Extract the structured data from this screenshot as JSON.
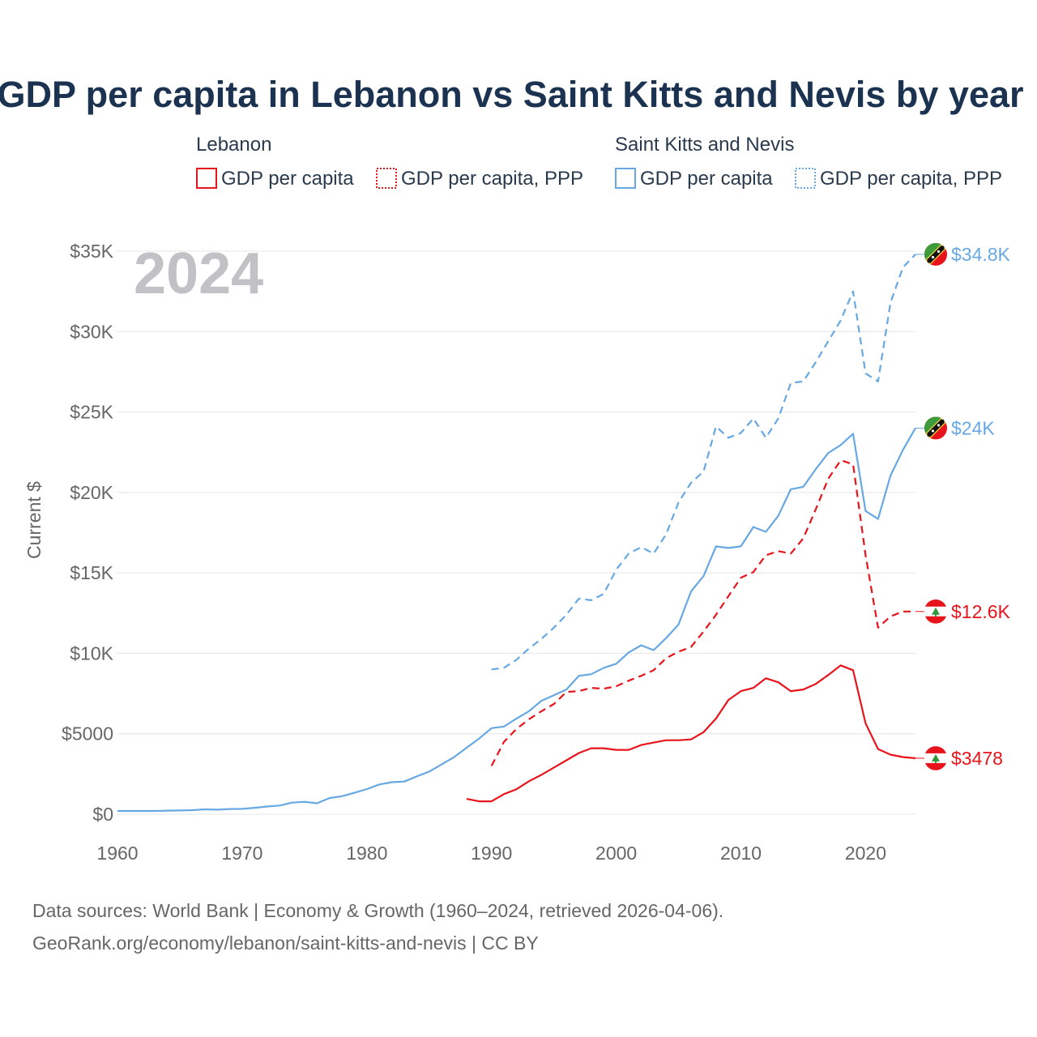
{
  "title": "GDP per capita in Lebanon vs Saint Kitts and Nevis by year",
  "year_label": "2024",
  "legend": {
    "lebanon_label": "Lebanon",
    "skn_label": "Saint Kitts and Nevis",
    "leb_gdp_label": "GDP per capita",
    "leb_ppp_label": "GDP per capita, PPP",
    "skn_gdp_label": "GDP per capita",
    "skn_ppp_label": "GDP per capita, PPP"
  },
  "colors": {
    "lebanon": "#e8141c",
    "skn": "#67a8e3",
    "title": "#1b3350"
  },
  "icons": {
    "skn_flag": "saint-kitts-and-nevis-flag-icon",
    "lebanon_flag": "lebanon-flag-icon"
  },
  "source_line1": "Data sources: World Bank | Economy & Growth (1960–2024, retrieved 2026-04-06).",
  "source_line2": "GeoRank.org/economy/lebanon/saint-kitts-and-nevis | CC BY",
  "chart_data": {
    "type": "line",
    "title": "GDP per capita in Lebanon vs Saint Kitts and Nevis by year",
    "xlabel": "",
    "ylabel": "Current $",
    "xlim": [
      1960,
      2024
    ],
    "ylim": [
      0,
      35000
    ],
    "x_ticks": [
      1960,
      1970,
      1980,
      1990,
      2000,
      2010,
      2020
    ],
    "x_tick_labels": [
      "1960",
      "1970",
      "1980",
      "1990",
      "2000",
      "2010",
      "2020"
    ],
    "y_ticks": [
      0,
      5000,
      10000,
      15000,
      20000,
      25000,
      30000,
      35000
    ],
    "y_tick_labels": [
      "$0",
      "$5000",
      "$10K",
      "$15K",
      "$20K",
      "$25K",
      "$30K",
      "$35K"
    ],
    "grid": true,
    "series": [
      {
        "name": "Saint Kitts and Nevis GDP per capita, PPP",
        "country": "Saint Kitts and Nevis",
        "style": "dashed",
        "end_label": "$34.8K",
        "points": [
          [
            1990,
            9000
          ],
          [
            1991,
            9100
          ],
          [
            1992,
            9600
          ],
          [
            1993,
            10300
          ],
          [
            1994,
            10900
          ],
          [
            1995,
            11600
          ],
          [
            1996,
            12400
          ],
          [
            1997,
            13400
          ],
          [
            1998,
            13300
          ],
          [
            1999,
            13700
          ],
          [
            2000,
            15200
          ],
          [
            2001,
            16200
          ],
          [
            2002,
            16600
          ],
          [
            2003,
            16200
          ],
          [
            2004,
            17400
          ],
          [
            2005,
            19400
          ],
          [
            2006,
            20600
          ],
          [
            2007,
            21300
          ],
          [
            2008,
            24100
          ],
          [
            2009,
            23400
          ],
          [
            2010,
            23700
          ],
          [
            2011,
            24600
          ],
          [
            2012,
            23400
          ],
          [
            2013,
            24600
          ],
          [
            2014,
            26800
          ],
          [
            2015,
            26900
          ],
          [
            2016,
            28100
          ],
          [
            2017,
            29400
          ],
          [
            2018,
            30700
          ],
          [
            2019,
            32500
          ],
          [
            2020,
            27400
          ],
          [
            2021,
            26900
          ],
          [
            2022,
            31800
          ],
          [
            2023,
            34000
          ],
          [
            2024,
            34800
          ]
        ]
      },
      {
        "name": "Saint Kitts and Nevis GDP per capita",
        "country": "Saint Kitts and Nevis",
        "style": "solid",
        "end_label": "$24K",
        "points": [
          [
            1960,
            200
          ],
          [
            1961,
            200
          ],
          [
            1962,
            200
          ],
          [
            1963,
            200
          ],
          [
            1964,
            220
          ],
          [
            1965,
            230
          ],
          [
            1966,
            250
          ],
          [
            1967,
            300
          ],
          [
            1968,
            280
          ],
          [
            1969,
            320
          ],
          [
            1970,
            330
          ],
          [
            1971,
            400
          ],
          [
            1972,
            480
          ],
          [
            1973,
            540
          ],
          [
            1974,
            720
          ],
          [
            1975,
            770
          ],
          [
            1976,
            680
          ],
          [
            1977,
            1000
          ],
          [
            1978,
            1120
          ],
          [
            1979,
            1330
          ],
          [
            1980,
            1560
          ],
          [
            1981,
            1850
          ],
          [
            1982,
            1990
          ],
          [
            1983,
            2030
          ],
          [
            1984,
            2350
          ],
          [
            1985,
            2650
          ],
          [
            1986,
            3100
          ],
          [
            1987,
            3550
          ],
          [
            1988,
            4130
          ],
          [
            1989,
            4700
          ],
          [
            1990,
            5350
          ],
          [
            1991,
            5450
          ],
          [
            1992,
            5950
          ],
          [
            1993,
            6400
          ],
          [
            1994,
            7050
          ],
          [
            1995,
            7400
          ],
          [
            1996,
            7750
          ],
          [
            1997,
            8600
          ],
          [
            1998,
            8700
          ],
          [
            1999,
            9100
          ],
          [
            2000,
            9350
          ],
          [
            2001,
            10050
          ],
          [
            2002,
            10500
          ],
          [
            2003,
            10200
          ],
          [
            2004,
            10950
          ],
          [
            2005,
            11800
          ],
          [
            2006,
            13850
          ],
          [
            2007,
            14800
          ],
          [
            2008,
            16650
          ],
          [
            2009,
            16550
          ],
          [
            2010,
            16650
          ],
          [
            2011,
            17850
          ],
          [
            2012,
            17550
          ],
          [
            2013,
            18550
          ],
          [
            2014,
            20200
          ],
          [
            2015,
            20350
          ],
          [
            2016,
            21450
          ],
          [
            2017,
            22450
          ],
          [
            2018,
            22950
          ],
          [
            2019,
            23650
          ],
          [
            2020,
            18850
          ],
          [
            2021,
            18350
          ],
          [
            2022,
            21050
          ],
          [
            2023,
            22650
          ],
          [
            2024,
            24000
          ]
        ]
      },
      {
        "name": "Lebanon GDP per capita, PPP",
        "country": "Lebanon",
        "style": "dashed",
        "end_label": "$12.6K",
        "points": [
          [
            1990,
            3000
          ],
          [
            1991,
            4500
          ],
          [
            1992,
            5300
          ],
          [
            1993,
            5900
          ],
          [
            1994,
            6400
          ],
          [
            1995,
            6850
          ],
          [
            1996,
            7600
          ],
          [
            1997,
            7650
          ],
          [
            1998,
            7850
          ],
          [
            1999,
            7800
          ],
          [
            2000,
            7950
          ],
          [
            2001,
            8300
          ],
          [
            2002,
            8600
          ],
          [
            2003,
            8950
          ],
          [
            2004,
            9700
          ],
          [
            2005,
            10100
          ],
          [
            2006,
            10400
          ],
          [
            2007,
            11350
          ],
          [
            2008,
            12400
          ],
          [
            2009,
            13550
          ],
          [
            2010,
            14700
          ],
          [
            2011,
            15050
          ],
          [
            2012,
            16100
          ],
          [
            2013,
            16350
          ],
          [
            2014,
            16200
          ],
          [
            2015,
            17150
          ],
          [
            2016,
            18950
          ],
          [
            2017,
            20850
          ],
          [
            2018,
            22000
          ],
          [
            2019,
            21750
          ],
          [
            2020,
            16100
          ],
          [
            2021,
            11600
          ],
          [
            2022,
            12300
          ],
          [
            2023,
            12600
          ],
          [
            2024,
            12600
          ]
        ]
      },
      {
        "name": "Lebanon GDP per capita",
        "country": "Lebanon",
        "style": "solid",
        "end_label": "$3478",
        "points": [
          [
            1988,
            950
          ],
          [
            1989,
            800
          ],
          [
            1990,
            800
          ],
          [
            1991,
            1250
          ],
          [
            1992,
            1550
          ],
          [
            1993,
            2050
          ],
          [
            1994,
            2450
          ],
          [
            1995,
            2900
          ],
          [
            1996,
            3350
          ],
          [
            1997,
            3800
          ],
          [
            1998,
            4100
          ],
          [
            1999,
            4100
          ],
          [
            2000,
            4000
          ],
          [
            2001,
            4000
          ],
          [
            2002,
            4300
          ],
          [
            2003,
            4450
          ],
          [
            2004,
            4600
          ],
          [
            2005,
            4600
          ],
          [
            2006,
            4650
          ],
          [
            2007,
            5100
          ],
          [
            2008,
            5950
          ],
          [
            2009,
            7100
          ],
          [
            2010,
            7650
          ],
          [
            2011,
            7850
          ],
          [
            2012,
            8450
          ],
          [
            2013,
            8200
          ],
          [
            2014,
            7650
          ],
          [
            2015,
            7750
          ],
          [
            2016,
            8100
          ],
          [
            2017,
            8650
          ],
          [
            2018,
            9250
          ],
          [
            2019,
            8950
          ],
          [
            2020,
            5650
          ],
          [
            2021,
            4050
          ],
          [
            2022,
            3700
          ],
          [
            2023,
            3550
          ],
          [
            2024,
            3478
          ]
        ]
      }
    ]
  }
}
